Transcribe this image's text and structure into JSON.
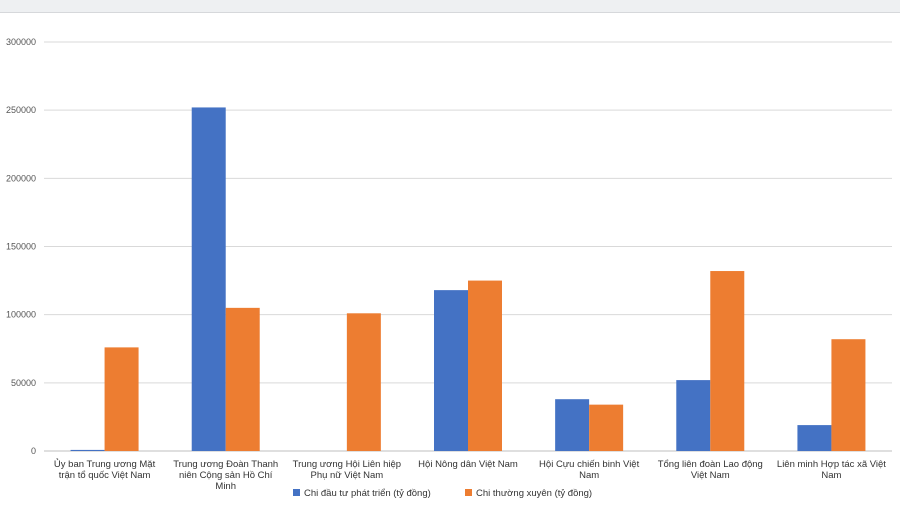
{
  "chart_data": {
    "type": "bar",
    "title": "",
    "xlabel": "",
    "ylabel": "",
    "ylim": [
      0,
      300000
    ],
    "yticks": [
      "0",
      "50000",
      "100000",
      "150000",
      "200000",
      "250000",
      "300000"
    ],
    "grid": true,
    "legend_position": "bottom",
    "categories": [
      [
        "Ủy ban Trung ương Mặt",
        "trận tổ quốc Việt Nam"
      ],
      [
        "Trung ương Đoàn Thanh",
        "niên Cộng sản Hồ Chí",
        "Minh"
      ],
      [
        "Trung ương Hội Liên hiệp",
        "Phụ nữ Việt Nam"
      ],
      [
        "Hội Nông dân Việt Nam"
      ],
      [
        "Hội Cựu chiến binh Việt",
        "Nam"
      ],
      [
        "Tổng liên đoàn Lao động",
        "Việt Nam"
      ],
      [
        "Liên minh Hợp tác xã Việt",
        "Nam"
      ]
    ],
    "series": [
      {
        "name": "Chi đầu tư phát triển (tỷ đồng)",
        "color": "#4472c4",
        "values": [
          800,
          252000,
          0,
          118000,
          38000,
          52000,
          19000
        ]
      },
      {
        "name": "Chi thường xuyên (tỷ đồng)",
        "color": "#ed7d31",
        "values": [
          76000,
          105000,
          101000,
          125000,
          34000,
          132000,
          82000
        ]
      }
    ]
  }
}
